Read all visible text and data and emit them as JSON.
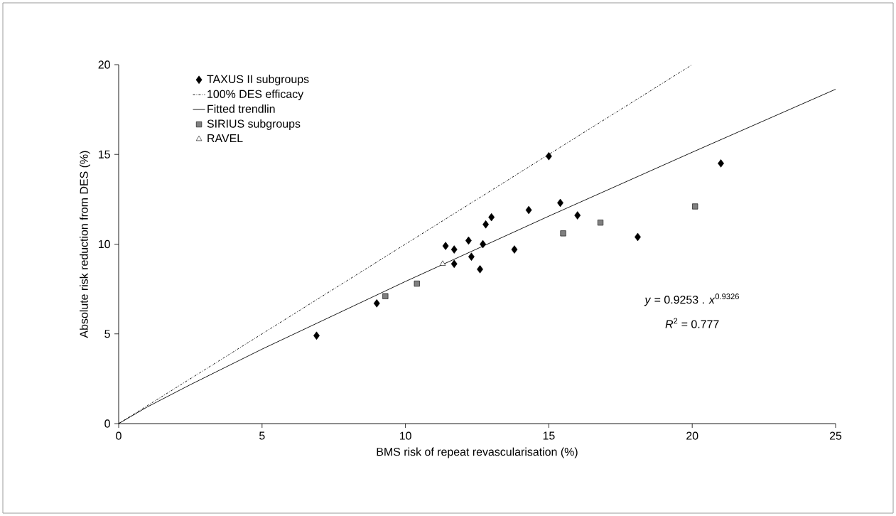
{
  "chart_data": {
    "type": "scatter",
    "xlabel": "BMS risk of repeat revascularisation (%)",
    "ylabel": "Absolute risk reduction from DES (%)",
    "xlim": [
      0,
      25
    ],
    "ylim": [
      0,
      20
    ],
    "xticks": [
      0,
      5,
      10,
      15,
      20,
      25
    ],
    "yticks": [
      0,
      5,
      10,
      15,
      20
    ],
    "legend": "top left",
    "series": [
      {
        "name": "TAXUS II subgroups",
        "marker": "diamond",
        "color": "#000000",
        "x": [
          6.9,
          9.0,
          11.4,
          11.7,
          11.7,
          12.2,
          12.3,
          12.6,
          12.7,
          12.8,
          13.0,
          13.8,
          14.3,
          15.0,
          15.4,
          16.0,
          18.1,
          21.0
        ],
        "values": [
          4.9,
          6.7,
          9.9,
          9.7,
          8.9,
          10.2,
          9.3,
          8.6,
          10.0,
          11.1,
          11.5,
          9.7,
          11.9,
          14.9,
          12.3,
          11.6,
          10.4,
          14.5
        ]
      },
      {
        "name": "100% DES efficacy",
        "type": "line",
        "line_style": "dashdot",
        "color": "#000000",
        "x": [
          0,
          20
        ],
        "values": [
          0,
          20
        ]
      },
      {
        "name": "Fitted trendlin",
        "type": "line",
        "line_style": "solid",
        "color": "#000000",
        "x": [
          0,
          1,
          2.5,
          5,
          10,
          15,
          20,
          25
        ],
        "values": [
          0,
          0.93,
          2.17,
          4.15,
          7.92,
          11.56,
          15.12,
          18.63
        ]
      },
      {
        "name": "SIRIUS subgroups",
        "marker": "square",
        "color": "#808080",
        "x": [
          9.3,
          10.4,
          15.5,
          16.8,
          20.1
        ],
        "values": [
          7.1,
          7.8,
          10.6,
          11.2,
          12.1
        ]
      },
      {
        "name": "RAVEL",
        "marker": "triangle",
        "color": "#ffffff",
        "x": [
          11.3
        ],
        "values": [
          8.9
        ]
      }
    ],
    "annotations": [
      "*y* = 0.9253 . *x*$^{0.9326}$",
      "*R*$^{2}$ = 0.777"
    ]
  }
}
